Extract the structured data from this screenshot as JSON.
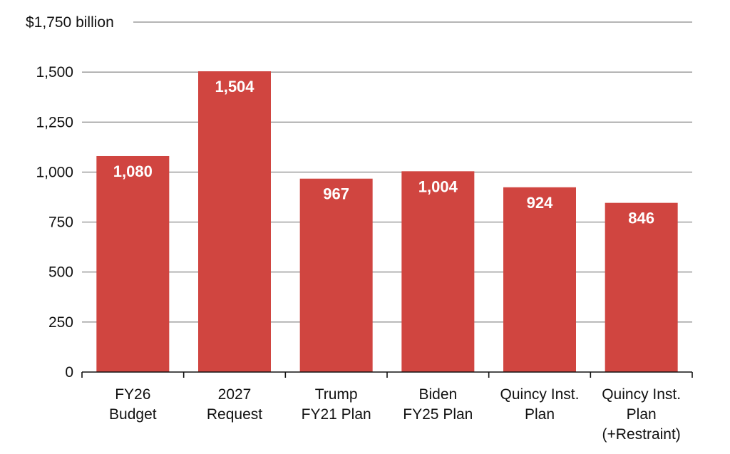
{
  "chart_data": {
    "type": "bar",
    "title": "",
    "xlabel": "",
    "ylabel": "",
    "unit_suffix": "billion",
    "top_tick_label": "$1,750 billion",
    "ylim": [
      0,
      1750
    ],
    "yticks": [
      0,
      250,
      500,
      750,
      1000,
      1250,
      1500,
      1750
    ],
    "ytick_labels": [
      "0",
      "250",
      "500",
      "750",
      "1,000",
      "1,250",
      "1,500",
      "$1,750 billion"
    ],
    "grid": true,
    "categories": [
      [
        "FY26",
        "Budget"
      ],
      [
        "2027",
        "Request"
      ],
      [
        "Trump",
        "FY21 Plan"
      ],
      [
        "Biden",
        "FY25 Plan"
      ],
      [
        "Quincy Inst.",
        "Plan"
      ],
      [
        "Quincy Inst.",
        "Plan",
        "(+Restraint)"
      ]
    ],
    "values": [
      1080,
      1504,
      967,
      1004,
      924,
      846
    ],
    "data_labels": [
      "1,080",
      "1,504",
      "967",
      "1,004",
      "924",
      "846"
    ],
    "colors": {
      "bar": "#d04540",
      "grid": "#6b6b6b",
      "text": "#111111",
      "data_label": "#ffffff"
    }
  }
}
